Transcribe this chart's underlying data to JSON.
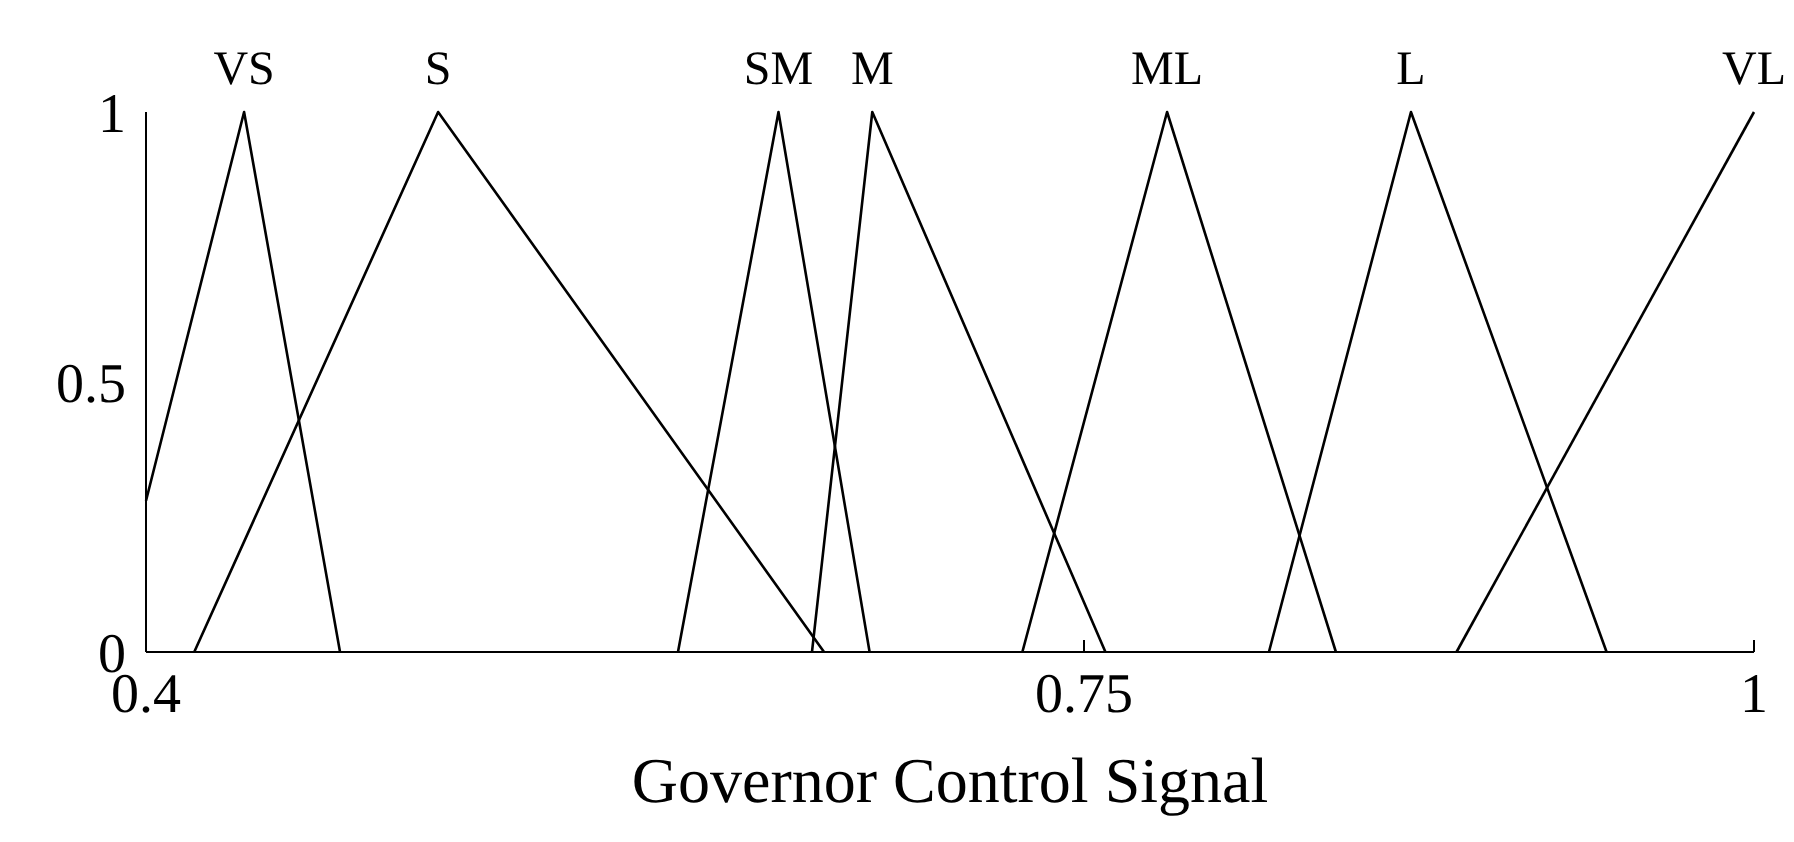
{
  "chart_data": {
    "type": "line",
    "xlabel": "Governor Control Signal",
    "xlim": [
      0.4,
      1
    ],
    "xticks": [
      0.4,
      0.75,
      1
    ],
    "ylim": [
      0,
      1
    ],
    "yticks": [
      0,
      0.5,
      1
    ],
    "grid": false,
    "marker": "none",
    "line_style": "solid",
    "series": [
      {
        "name": "VS",
        "color": "#000000",
        "x": [
          0.4,
          0.4366,
          0.4724
        ],
        "values": [
          0.28,
          1,
          0
        ]
      },
      {
        "name": "S",
        "color": "#000000",
        "x": [
          0.418,
          0.509,
          0.653
        ],
        "values": [
          0,
          1,
          0
        ]
      },
      {
        "name": "SM",
        "color": "#000000",
        "x": [
          0.5985,
          0.636,
          0.67
        ],
        "values": [
          0,
          1,
          0
        ]
      },
      {
        "name": "M",
        "color": "#000000",
        "x": [
          0.6485,
          0.671,
          0.758
        ],
        "values": [
          0,
          1,
          0
        ]
      },
      {
        "name": "ML",
        "color": "#000000",
        "x": [
          0.727,
          0.781,
          0.844
        ],
        "values": [
          0,
          1,
          0
        ]
      },
      {
        "name": "L",
        "color": "#000000",
        "x": [
          0.819,
          0.872,
          0.945
        ],
        "values": [
          0,
          1,
          0
        ]
      },
      {
        "name": "VL",
        "color": "#000000",
        "x": [
          0.889,
          1
        ],
        "values": [
          0,
          1
        ]
      }
    ]
  }
}
